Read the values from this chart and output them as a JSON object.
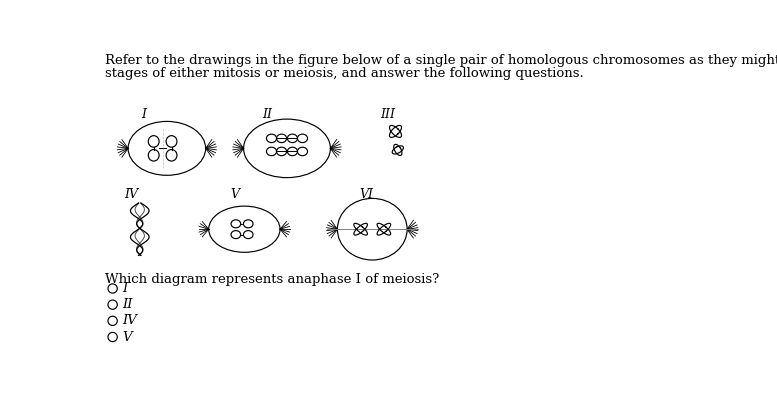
{
  "title_line1": "Refer to the drawings in the figure below of a single pair of homologous chromosomes as they might appear during various",
  "title_line2": "stages of either mitosis or meiosis, and answer the following questions.",
  "question_text": "Which diagram represents anaphase I of meiosis?",
  "choices": [
    "I",
    "II",
    "IV",
    "V"
  ],
  "bg_color": "#ffffff",
  "text_color": "#000000",
  "font_size_body": 9.5,
  "font_size_label": 9
}
